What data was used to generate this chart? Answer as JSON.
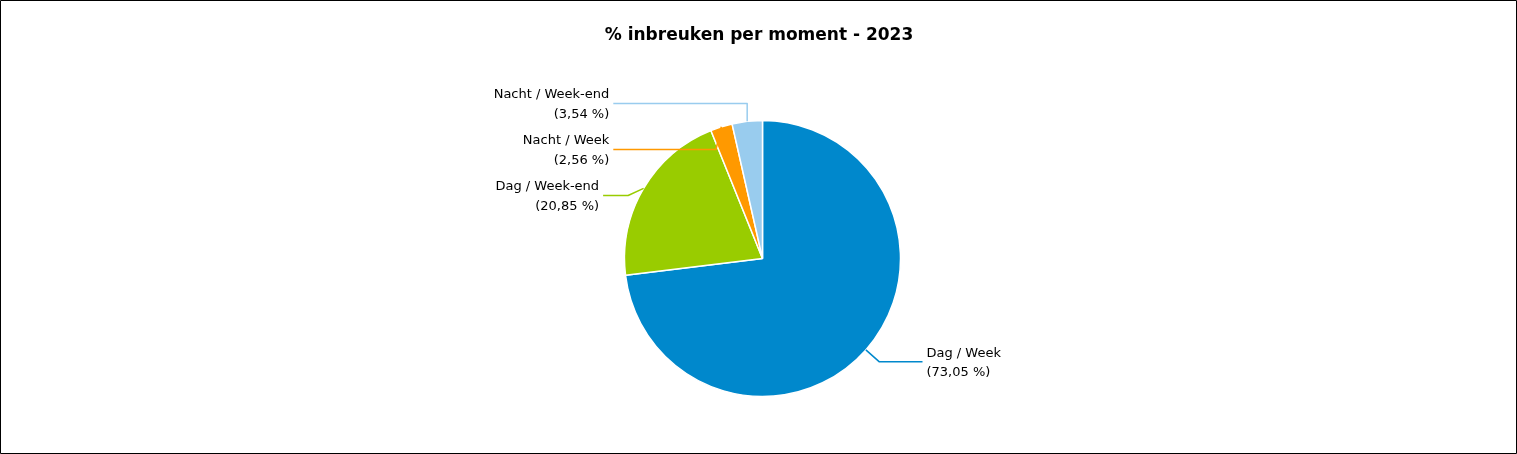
{
  "chart_data": {
    "type": "pie",
    "title": "% inbreuken per moment - 2023",
    "categories": [
      "Dag / Week",
      "Dag / Week-end",
      "Nacht / Week",
      "Nacht / Week-end"
    ],
    "values": [
      73.05,
      20.85,
      2.56,
      3.54
    ],
    "colors": [
      "#0088cc",
      "#99cc00",
      "#ff9900",
      "#99ccee"
    ],
    "value_labels": [
      "(73,05 %)",
      "(20,85 %)",
      "(2,56 %)",
      "(3,54 %)"
    ]
  }
}
